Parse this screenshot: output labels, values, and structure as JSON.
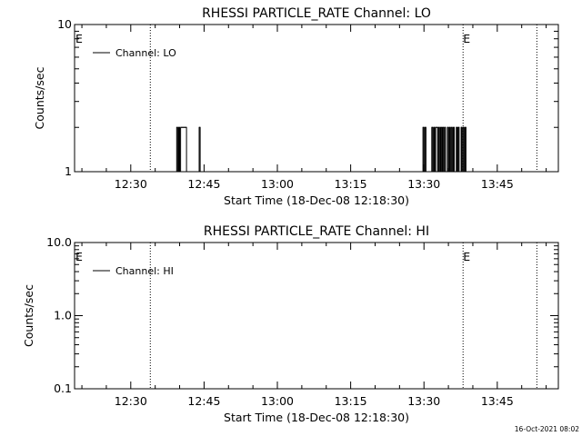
{
  "footer": {
    "date_stamp": "16-Oct-2021 08:02"
  },
  "chart_data": [
    {
      "type": "line",
      "title": "RHESSI PARTICLE_RATE Channel: LO",
      "xlabel": "Start Time (18-Dec-08 12:18:30)",
      "ylabel": "Counts/sec",
      "x_unit": "minutes after 12:18:30",
      "xlim": [
        0,
        99
      ],
      "ylim": [
        1,
        10
      ],
      "yscale": "log",
      "x_ticks": [
        {
          "t": 11.5,
          "label": "12:30"
        },
        {
          "t": 26.5,
          "label": "12:45"
        },
        {
          "t": 41.5,
          "label": "13:00"
        },
        {
          "t": 56.5,
          "label": "13:15"
        },
        {
          "t": 71.5,
          "label": "13:30"
        },
        {
          "t": 86.5,
          "label": "13:45"
        }
      ],
      "y_ticks": [
        {
          "v": 1,
          "label": "1"
        },
        {
          "v": 10,
          "label": "10"
        }
      ],
      "y_minor": [
        2,
        3,
        4,
        5,
        6,
        7,
        8,
        9
      ],
      "markers": [
        {
          "t": 15.5,
          "label": ""
        },
        {
          "t": 79.5,
          "label": "E"
        },
        {
          "t": 94.6,
          "label": ""
        }
      ],
      "corner_label": "E",
      "legend": {
        "label": "Channel: LO",
        "position": "top-left"
      },
      "series": [
        {
          "name": "Channel: LO",
          "x": [
            20.7,
            20.9,
            21.1,
            21.3,
            21.5,
            21.7,
            21.9,
            22.1,
            22.3,
            22.5,
            22.7,
            22.9,
            23.1,
            23.3,
            25.3,
            25.5,
            25.7,
            71.1,
            71.3,
            71.5,
            71.7,
            71.9,
            72.1,
            72.3,
            72.5,
            72.7,
            72.9,
            73.1,
            73.3,
            73.5,
            73.7,
            73.9,
            74.1,
            74.3,
            74.5,
            74.7,
            74.9,
            75.1,
            75.3,
            75.5,
            75.7,
            75.9,
            76.1,
            76.3,
            76.5,
            76.7,
            76.9,
            77.1,
            77.3,
            77.5,
            77.7,
            77.9,
            78.1,
            78.3,
            78.5,
            78.7,
            78.9,
            79.1,
            79.3,
            79.5,
            79.7,
            79.9,
            80.1,
            80.3,
            80.5
          ],
          "y": [
            1,
            2,
            1,
            2,
            1,
            2,
            2,
            2,
            2,
            2,
            2,
            1,
            1,
            1,
            1,
            2,
            1,
            1,
            2,
            1,
            2,
            1,
            1,
            1,
            1,
            1,
            1,
            2,
            1,
            2,
            1,
            2,
            2,
            1,
            2,
            1,
            2,
            1,
            2,
            1,
            2,
            1,
            1,
            2,
            1,
            2,
            1,
            2,
            1,
            2,
            1,
            1,
            2,
            1,
            2,
            1,
            1,
            2,
            1,
            2,
            1,
            2,
            1,
            1,
            1
          ]
        }
      ]
    },
    {
      "type": "line",
      "title": "RHESSI PARTICLE_RATE Channel: HI",
      "xlabel": "Start Time (18-Dec-08 12:18:30)",
      "ylabel": "Counts/sec",
      "x_unit": "minutes after 12:18:30",
      "xlim": [
        0,
        99
      ],
      "ylim": [
        0.1,
        10
      ],
      "yscale": "log",
      "x_ticks": [
        {
          "t": 11.5,
          "label": "12:30"
        },
        {
          "t": 26.5,
          "label": "12:45"
        },
        {
          "t": 41.5,
          "label": "13:00"
        },
        {
          "t": 56.5,
          "label": "13:15"
        },
        {
          "t": 71.5,
          "label": "13:30"
        },
        {
          "t": 86.5,
          "label": "13:45"
        }
      ],
      "y_ticks": [
        {
          "v": 0.1,
          "label": "0.1"
        },
        {
          "v": 1,
          "label": "1.0"
        },
        {
          "v": 10,
          "label": "10.0"
        }
      ],
      "y_minor": [
        0.2,
        0.3,
        0.4,
        0.5,
        0.6,
        0.7,
        0.8,
        0.9,
        2,
        3,
        4,
        5,
        6,
        7,
        8,
        9
      ],
      "markers": [
        {
          "t": 15.5,
          "label": ""
        },
        {
          "t": 79.5,
          "label": "E"
        },
        {
          "t": 94.6,
          "label": ""
        }
      ],
      "corner_label": "E",
      "legend": {
        "label": "Channel: HI",
        "position": "top-left"
      },
      "series": [
        {
          "name": "Channel: HI",
          "x": [],
          "y": []
        }
      ]
    }
  ]
}
